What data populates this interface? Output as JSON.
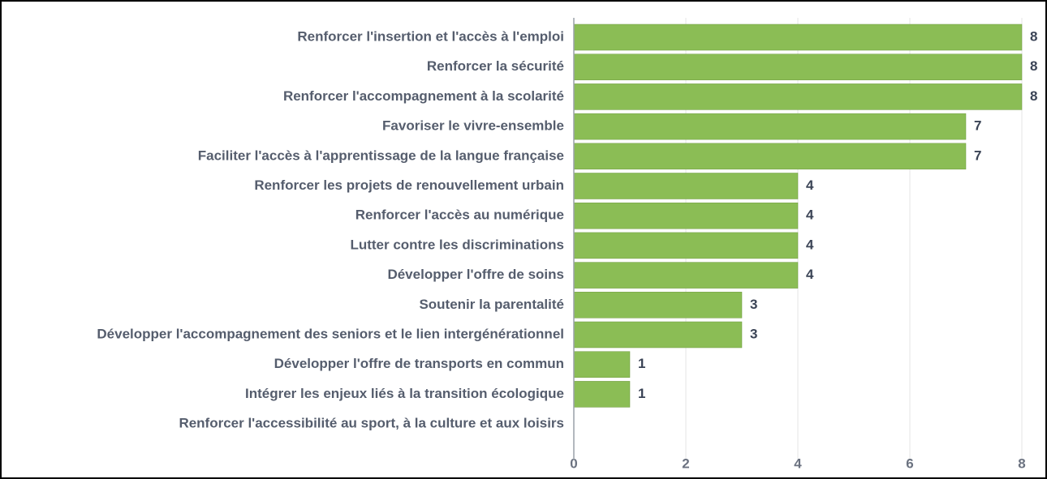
{
  "chart_data": {
    "type": "bar",
    "orientation": "horizontal",
    "categories": [
      "Renforcer l'insertion et l'accès à l'emploi",
      "Renforcer la sécurité",
      "Renforcer l'accompagnement à la scolarité",
      "Favoriser le vivre-ensemble",
      "Faciliter l'accès à l'apprentissage de la langue française",
      "Renforcer les projets de renouvellement urbain",
      "Renforcer l'accès au numérique",
      "Lutter contre les discriminations",
      "Développer l'offre de soins",
      "Soutenir la parentalité",
      "Développer l'accompagnement des seniors et le lien intergénérationnel",
      "Développer l'offre de transports en commun",
      "Intégrer les enjeux liés à la transition écologique",
      "Renforcer l'accessibilité au sport, à la culture et aux loisirs"
    ],
    "values": [
      8,
      8,
      8,
      7,
      7,
      4,
      4,
      4,
      4,
      3,
      3,
      1,
      1,
      0
    ],
    "color": "#8bbd55",
    "xlim": [
      0,
      8.1
    ],
    "xticks": [
      0,
      2,
      4,
      6,
      8
    ],
    "grid": true
  }
}
